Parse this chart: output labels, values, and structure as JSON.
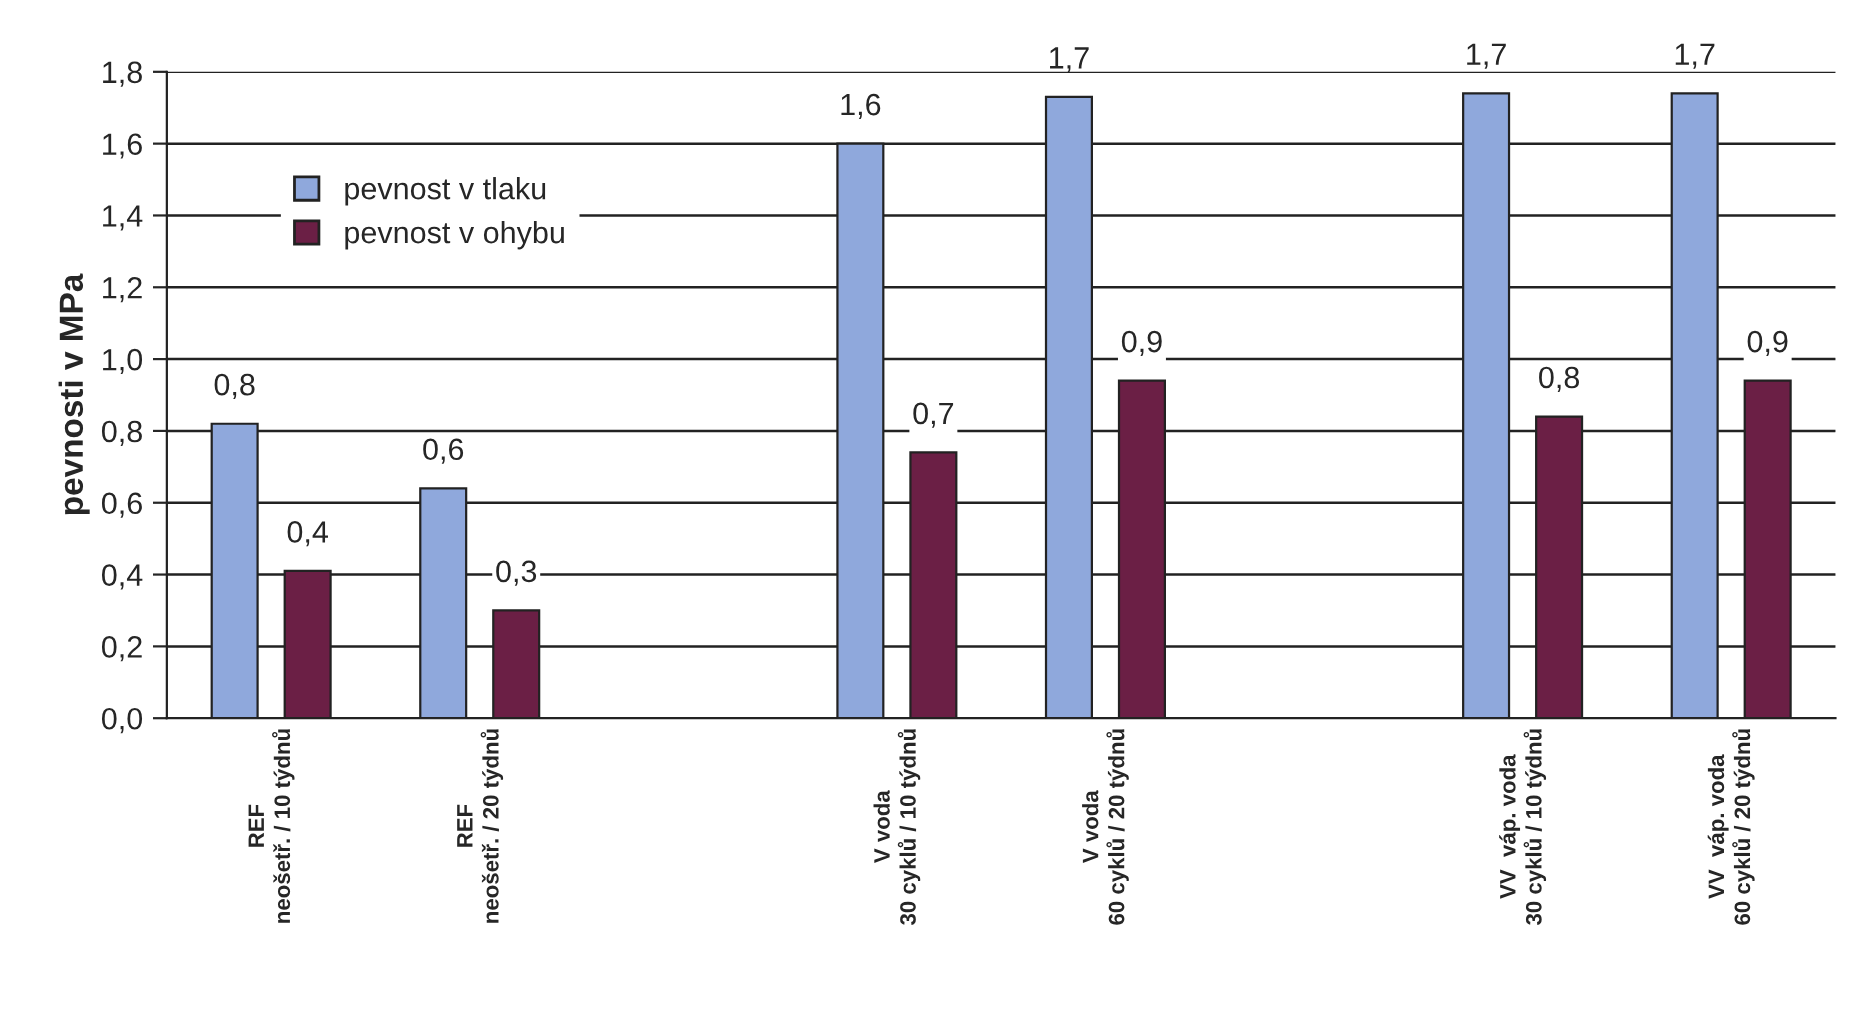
{
  "chart_data": {
    "type": "bar",
    "ylabel": "pevnosti v MPa",
    "categories": [
      "REF\nneošetř. / 10 týdnů",
      "REF\nneošetř. / 20 týdnů",
      null,
      "V voda\n30 cyklů / 10 týdnů",
      "V voda\n60 cyklů / 20 týdnů",
      null,
      "VV  váp. voda\n30 cyklů / 10 týdnů",
      "VV  váp. voda\n60 cyklů / 20 týdnů"
    ],
    "series": [
      {
        "name": "pevnost v tlaku",
        "color": "#8fa8dc",
        "values": [
          0.82,
          0.64,
          null,
          1.6,
          1.73,
          null,
          1.74,
          1.74
        ],
        "value_labels": [
          "0,8",
          "0,6",
          null,
          "1,6",
          "1,7",
          null,
          "1,7",
          "1,7"
        ]
      },
      {
        "name": "pevnost v ohybu",
        "color": "#6b1f45",
        "values": [
          0.41,
          0.3,
          null,
          0.74,
          0.94,
          null,
          0.84,
          0.94
        ],
        "value_labels": [
          "0,4",
          "0,3",
          null,
          "0,7",
          "0,9",
          null,
          "0,8",
          "0,9"
        ]
      }
    ],
    "ylim": [
      0,
      1.8
    ],
    "yticks": [
      {
        "value": 0,
        "label": "0,0"
      },
      {
        "value": 0.2,
        "label": "0,2"
      },
      {
        "value": 0.4,
        "label": "0,4"
      },
      {
        "value": 0.6,
        "label": "0,6"
      },
      {
        "value": 0.8,
        "label": "0,8"
      },
      {
        "value": 1.0,
        "label": "1,0"
      },
      {
        "value": 1.2,
        "label": "1,2"
      },
      {
        "value": 1.4,
        "label": "1,4"
      },
      {
        "value": 1.6,
        "label": "1,6"
      },
      {
        "value": 1.8,
        "label": "1,8"
      }
    ],
    "grid": "y",
    "legend": "top left"
  }
}
